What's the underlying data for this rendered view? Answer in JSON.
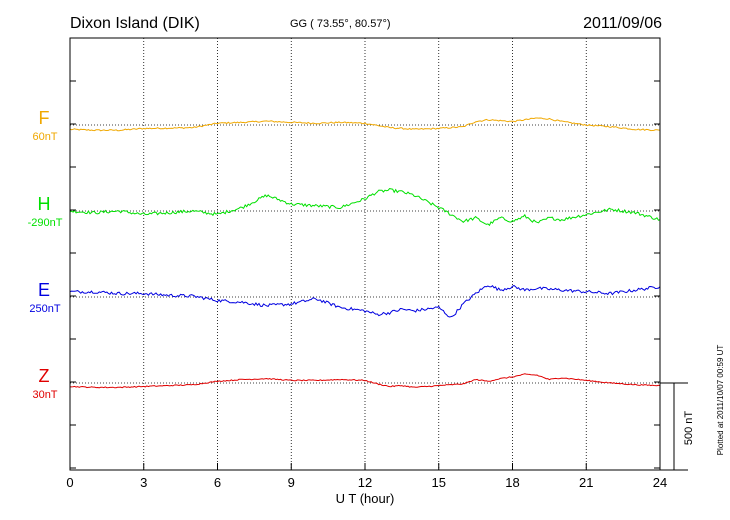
{
  "chart_data": {
    "type": "line",
    "header": {
      "station": "Dixon Island (DIK)",
      "coords": "GG ( 73.55°,  80.57°)",
      "date": "2011/09/06"
    },
    "xlabel": "U T (hour)",
    "xlim": [
      0,
      24
    ],
    "xticks": [
      0,
      3,
      6,
      9,
      12,
      15,
      18,
      21,
      24
    ],
    "xtick_labels": [
      "0",
      "3",
      "6",
      "9",
      "12",
      "15",
      "18",
      "21",
      "24"
    ],
    "scale_bar": {
      "value_nT": 500,
      "label": "500 nT"
    },
    "plotted_note": "Plotted at 2011/10/07 00:59 UT",
    "series": [
      {
        "name": "F",
        "base_label": "60nT",
        "base_nT": 60,
        "color": "#f0a800",
        "t": [
          0,
          1,
          2,
          3,
          4,
          5,
          6,
          7,
          8,
          9,
          10,
          11,
          12,
          13,
          14,
          15,
          16,
          16.5,
          17,
          17.5,
          18,
          18.5,
          19,
          19.5,
          20,
          21,
          22,
          23,
          24
        ],
        "dev_nT": [
          -25,
          -30,
          -30,
          -20,
          -18,
          -15,
          10,
          15,
          22,
          15,
          10,
          15,
          10,
          -15,
          -25,
          -20,
          -10,
          20,
          30,
          25,
          20,
          30,
          40,
          35,
          20,
          0,
          -10,
          -25,
          -30
        ]
      },
      {
        "name": "H",
        "base_label": "-290nT",
        "base_nT": -290,
        "color": "#00e000",
        "t": [
          0,
          1,
          2,
          3,
          4,
          5,
          6,
          7,
          8,
          9,
          10,
          11,
          12,
          12.5,
          13,
          13.5,
          14,
          15,
          15.5,
          16,
          16.5,
          17,
          17.5,
          18,
          18.5,
          19,
          19.5,
          20,
          21,
          22,
          23,
          24
        ],
        "dev_nT": [
          0,
          -10,
          0,
          -20,
          -10,
          0,
          -20,
          20,
          90,
          40,
          30,
          20,
          70,
          110,
          120,
          110,
          90,
          20,
          -20,
          -60,
          -40,
          -80,
          -40,
          -60,
          -30,
          -70,
          -40,
          -50,
          -20,
          10,
          -10,
          -50
        ]
      },
      {
        "name": "E",
        "base_label": "250nT",
        "base_nT": 250,
        "color": "#0000e0",
        "t": [
          0,
          1,
          2,
          3,
          4,
          5,
          6,
          7,
          8,
          9,
          10,
          11,
          12,
          12.5,
          13,
          13.5,
          14,
          15,
          15.5,
          16,
          16.5,
          17,
          17.5,
          18,
          18.5,
          19,
          20,
          21,
          22,
          23,
          24
        ],
        "dev_nT": [
          30,
          30,
          20,
          20,
          10,
          5,
          -20,
          -30,
          -50,
          -40,
          -10,
          -60,
          -80,
          -100,
          -90,
          -70,
          -80,
          -60,
          -120,
          -40,
          20,
          70,
          40,
          60,
          40,
          50,
          40,
          30,
          20,
          40,
          60
        ]
      },
      {
        "name": "Z",
        "base_label": "30nT",
        "base_nT": 30,
        "color": "#e00000",
        "t": [
          0,
          1,
          2,
          3,
          4,
          5,
          6,
          7,
          8,
          9,
          10,
          11,
          12,
          12.5,
          13,
          13.5,
          14,
          15,
          16,
          16.5,
          17,
          17.5,
          18,
          18.5,
          19,
          19.5,
          20,
          21,
          22,
          23,
          24
        ],
        "dev_nT": [
          -20,
          -25,
          -25,
          -20,
          -15,
          -10,
          10,
          20,
          25,
          15,
          15,
          20,
          15,
          -5,
          -20,
          -15,
          -25,
          -15,
          -5,
          20,
          10,
          25,
          35,
          50,
          45,
          20,
          30,
          15,
          0,
          -10,
          -15
        ]
      }
    ]
  }
}
